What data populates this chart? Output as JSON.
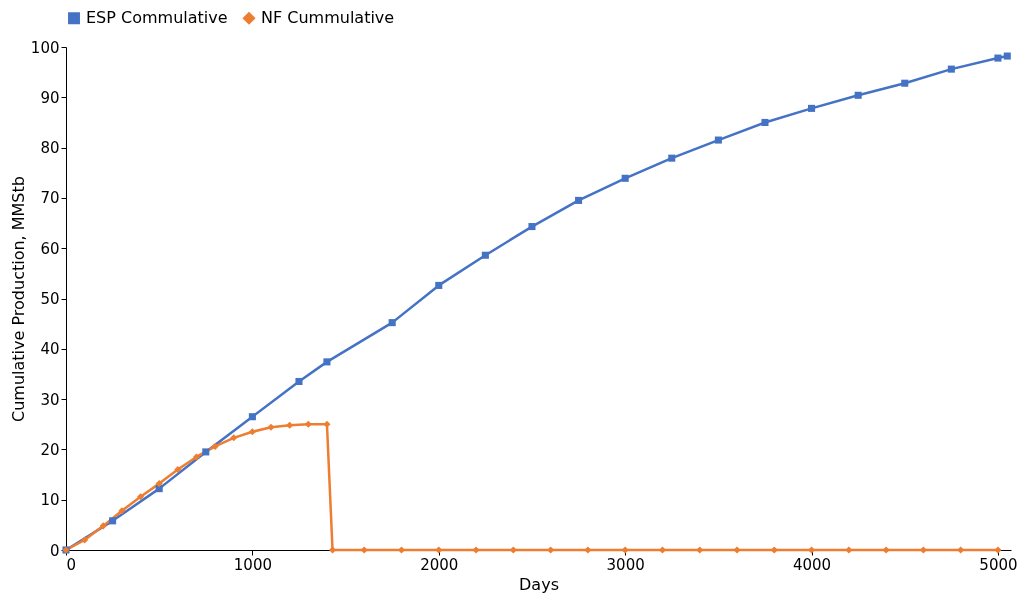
{
  "chart_data": {
    "type": "line",
    "xlabel": "Days",
    "ylabel": "Cumulative Production, MMStb",
    "xlim": [
      0,
      5070
    ],
    "ylim": [
      0,
      100
    ],
    "xticks": [
      0,
      1000,
      2000,
      3000,
      4000,
      5000
    ],
    "yticks": [
      0,
      10,
      20,
      30,
      40,
      50,
      60,
      70,
      80,
      90,
      100
    ],
    "grid": false,
    "legend": "top",
    "line_style": "solid",
    "series": [
      {
        "name": "ESP Commulative",
        "color": "#4472c4",
        "marker": "square",
        "x": [
          0,
          250,
          500,
          750,
          1000,
          1250,
          1400,
          1750,
          2000,
          2250,
          2500,
          2750,
          3000,
          3250,
          3500,
          3750,
          4000,
          4250,
          4500,
          4750,
          5000,
          5050
        ],
        "values": [
          0,
          5.8,
          12.2,
          19.5,
          26.5,
          33.5,
          37.4,
          45.2,
          52.6,
          58.6,
          64.3,
          69.5,
          73.9,
          77.9,
          81.5,
          85,
          87.8,
          90.4,
          92.8,
          95.6,
          97.8,
          98.2
        ]
      },
      {
        "name": "NF Cummulative",
        "color": "#ed7d31",
        "marker": "diamond",
        "x": [
          0,
          100,
          200,
          300,
          400,
          500,
          600,
          700,
          800,
          900,
          1000,
          1100,
          1200,
          1300,
          1400,
          1430,
          1600,
          1800,
          2000,
          2200,
          2400,
          2600,
          2800,
          3000,
          3200,
          3400,
          3600,
          3800,
          4000,
          4200,
          4400,
          4600,
          4800,
          5000
        ],
        "values": [
          0,
          2,
          4.8,
          7.8,
          10.6,
          13.2,
          16,
          18.5,
          20.6,
          22.3,
          23.5,
          24.4,
          24.8,
          25,
          25,
          0,
          0,
          0,
          0,
          0,
          0,
          0,
          0,
          0,
          0,
          0,
          0,
          0,
          0,
          0,
          0,
          0,
          0,
          0
        ]
      }
    ]
  }
}
